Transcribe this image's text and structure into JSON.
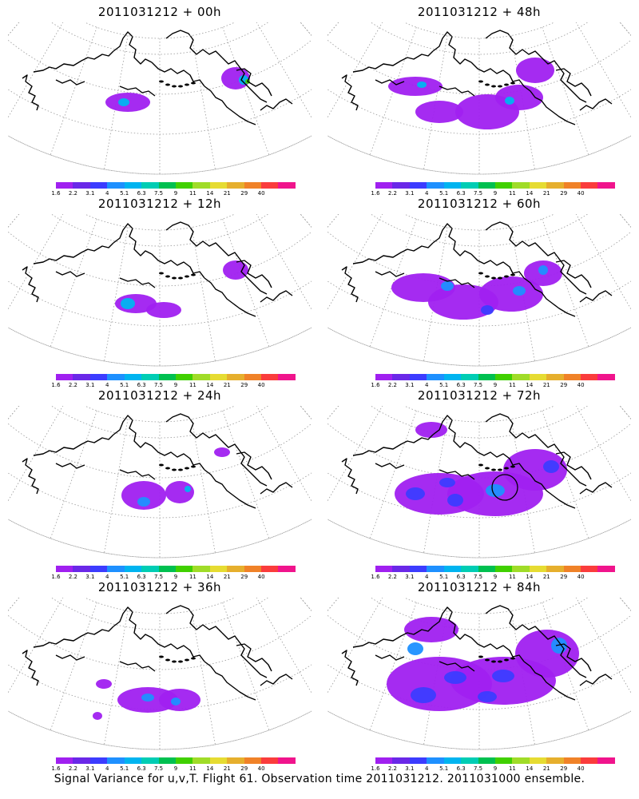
{
  "caption": "Signal Variance for u,v,T. Flight 61. Observation time 2011031212. 2011031000 ensemble.",
  "colorbar": {
    "labels": [
      "1.6",
      "2.2",
      "3.1",
      "4",
      "5.1",
      "6.3",
      "7.5",
      "9",
      "11",
      "14",
      "21",
      "29",
      "40"
    ],
    "colors": [
      "#a020f0",
      "#6a28e8",
      "#3c3cff",
      "#1e90ff",
      "#00b4f0",
      "#00cdb4",
      "#00c050",
      "#40d000",
      "#a0dc28",
      "#e6dc32",
      "#e6af2d",
      "#f08228",
      "#fa3c3c",
      "#f0148c"
    ]
  },
  "panels": [
    {
      "title": "2011031212 + 00h",
      "level": 0
    },
    {
      "title": "2011031212 + 12h",
      "level": 1
    },
    {
      "title": "2011031212 + 24h",
      "level": 2
    },
    {
      "title": "2011031212 + 36h",
      "level": 3
    },
    {
      "title": "2011031212 + 48h",
      "level": 4
    },
    {
      "title": "2011031212 + 60h",
      "level": 5
    },
    {
      "title": "2011031212 + 72h",
      "level": 6
    },
    {
      "title": "2011031212 + 84h",
      "level": 7
    }
  ]
}
